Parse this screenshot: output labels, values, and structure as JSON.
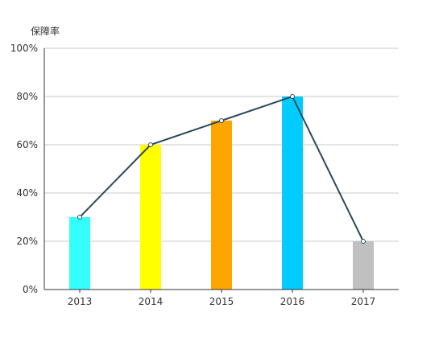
{
  "chart_data": {
    "type": "bar",
    "ylabel": "保障率",
    "categories": [
      "2013",
      "2014",
      "2015",
      "2016",
      "2017"
    ],
    "values": [
      30,
      60,
      70,
      80,
      20
    ],
    "bar_colors": [
      "#33ffff",
      "#ffff00",
      "#ffa500",
      "#00ccff",
      "#c0c0c0"
    ],
    "line": {
      "values": [
        30,
        60,
        70,
        80,
        20
      ],
      "color": "#2d4a5a"
    },
    "ylim": [
      0,
      100
    ],
    "y_ticks": [
      0,
      20,
      40,
      60,
      80,
      100
    ],
    "y_tick_labels": [
      "0%",
      "20%",
      "40%",
      "60%",
      "80%",
      "100%"
    ],
    "grid": true,
    "legend": "none"
  }
}
